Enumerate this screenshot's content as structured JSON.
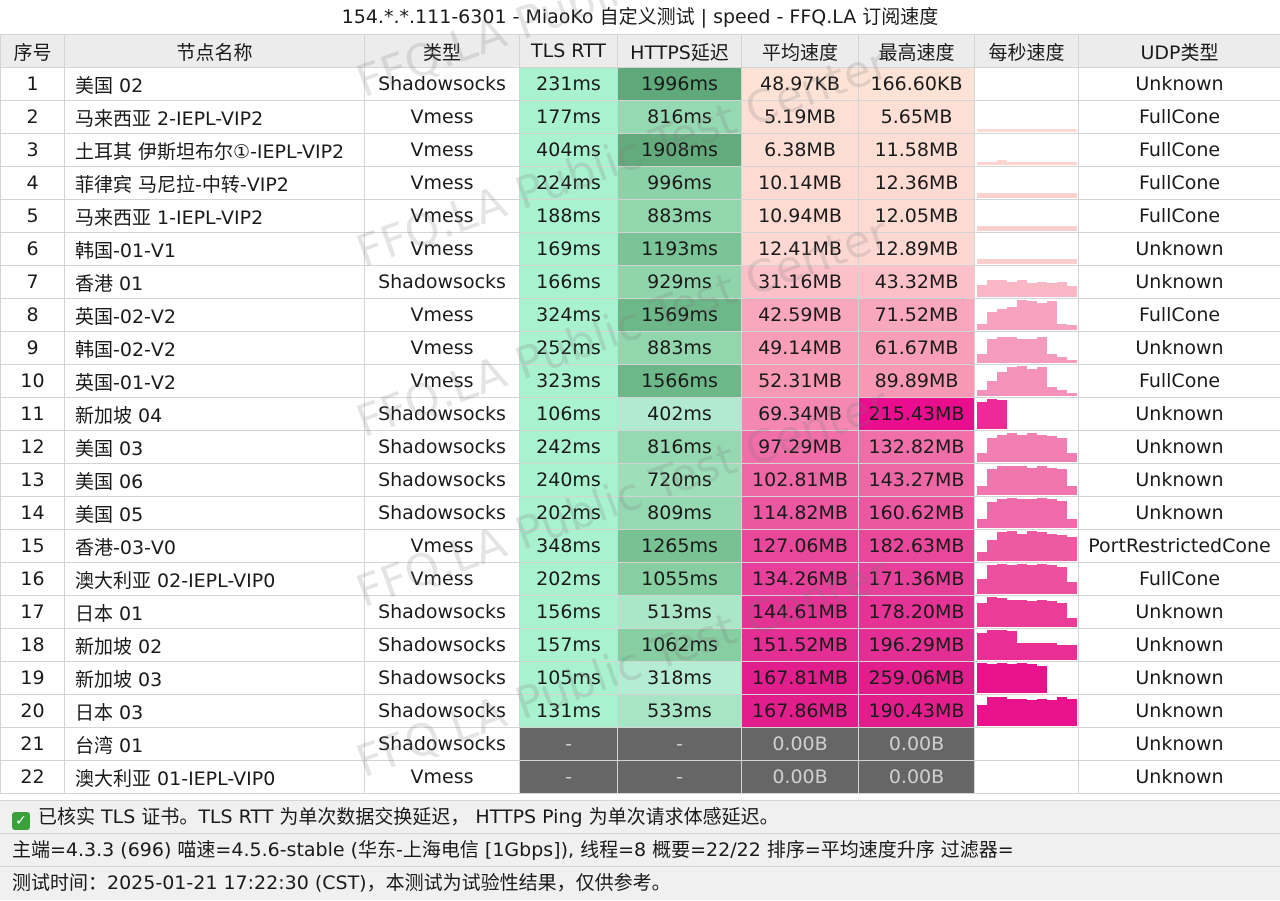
{
  "title": "154.*.*.111-6301 - MiaoKo 自定义测试 | speed - FFQ.LA 订阅速度",
  "columns": [
    "序号",
    "节点名称",
    "类型",
    "TLS RTT",
    "HTTPS延迟",
    "平均速度",
    "最高速度",
    "每秒速度",
    "UDP类型"
  ],
  "rows": [
    {
      "no": "1",
      "name": "美国 02",
      "type": "Shadowsocks",
      "tls": "231ms",
      "https": "1996ms",
      "avg": "48.97KB",
      "max": "166.60KB",
      "udp": "Unknown",
      "tls_color": "#a9f2cf",
      "https_color": "#5fa87a",
      "avg_color": "#fde3d6",
      "max_color": "#fde3d6",
      "profile": [],
      "profile_color": "#ffffff"
    },
    {
      "no": "2",
      "name": "马来西亚 2-IEPL-VIP2",
      "type": "Vmess",
      "tls": "177ms",
      "https": "816ms",
      "avg": "5.19MB",
      "max": "5.65MB",
      "udp": "FullCone",
      "tls_color": "#a9f2cf",
      "https_color": "#95d9b2",
      "avg_color": "#fddfd5",
      "max_color": "#fddfd5",
      "profile": [
        0.1,
        0.1,
        0.1,
        0.1,
        0.1,
        0.1,
        0.1,
        0.1,
        0.1,
        0.1
      ],
      "profile_color": "#fcd9d2"
    },
    {
      "no": "3",
      "name": "土耳其 伊斯坦布尔①-IEPL-VIP2",
      "type": "Vmess",
      "tls": "404ms",
      "https": "1908ms",
      "avg": "6.38MB",
      "max": "11.58MB",
      "udp": "FullCone",
      "tls_color": "#a9f2cf",
      "https_color": "#63ab7d",
      "avg_color": "#fdded5",
      "max_color": "#fdded5",
      "profile": [
        0.1,
        0.1,
        0.15,
        0.1,
        0.1,
        0.1,
        0.1,
        0.1,
        0.1,
        0.1
      ],
      "profile_color": "#fcd5d0"
    },
    {
      "no": "4",
      "name": "菲律宾 马尼拉-中转-VIP2",
      "type": "Vmess",
      "tls": "224ms",
      "https": "996ms",
      "avg": "10.14MB",
      "max": "12.36MB",
      "udp": "FullCone",
      "tls_color": "#a9f2cf",
      "https_color": "#8cd2a8",
      "avg_color": "#fddad2",
      "max_color": "#fddad2",
      "profile": [
        0.15,
        0.15,
        0.15,
        0.15,
        0.15,
        0.15,
        0.15,
        0.15,
        0.15,
        0.15
      ],
      "profile_color": "#fcd1cd"
    },
    {
      "no": "5",
      "name": "马来西亚 1-IEPL-VIP2",
      "type": "Vmess",
      "tls": "188ms",
      "https": "883ms",
      "avg": "10.94MB",
      "max": "12.05MB",
      "udp": "FullCone",
      "tls_color": "#a9f2cf",
      "https_color": "#92d6ae",
      "avg_color": "#fddad2",
      "max_color": "#fddad2",
      "profile": [
        0.15,
        0.15,
        0.15,
        0.15,
        0.15,
        0.15,
        0.15,
        0.15,
        0.15,
        0.15
      ],
      "profile_color": "#fcd1cd"
    },
    {
      "no": "6",
      "name": "韩国-01-V1",
      "type": "Vmess",
      "tls": "169ms",
      "https": "1193ms",
      "avg": "12.41MB",
      "max": "12.89MB",
      "udp": "Unknown",
      "tls_color": "#a9f2cf",
      "https_color": "#7bc497",
      "avg_color": "#fdd8d2",
      "max_color": "#fdd8d2",
      "profile": [
        0.15,
        0.15,
        0.15,
        0.15,
        0.15,
        0.15,
        0.15,
        0.15,
        0.15,
        0.15
      ],
      "profile_color": "#fccfcc"
    },
    {
      "no": "7",
      "name": "香港 01",
      "type": "Shadowsocks",
      "tls": "166ms",
      "https": "929ms",
      "avg": "31.16MB",
      "max": "43.32MB",
      "udp": "Unknown",
      "tls_color": "#a9f2cf",
      "https_color": "#8fd4ab",
      "avg_color": "#fbc0c8",
      "max_color": "#fbc0c8",
      "profile": [
        0.4,
        0.55,
        0.55,
        0.5,
        0.55,
        0.45,
        0.5,
        0.45,
        0.5,
        0.35
      ],
      "profile_color": "#f9b7c6"
    },
    {
      "no": "8",
      "name": "英国-02-V2",
      "type": "Vmess",
      "tls": "324ms",
      "https": "1569ms",
      "avg": "42.59MB",
      "max": "71.52MB",
      "udp": "FullCone",
      "tls_color": "#a9f2cf",
      "https_color": "#6db889",
      "avg_color": "#f9a7bd",
      "max_color": "#f9a7bd",
      "profile": [
        0.2,
        0.6,
        0.7,
        0.75,
        1.0,
        0.95,
        0.9,
        0.95,
        0.2,
        0.15
      ],
      "profile_color": "#f7a2bf"
    },
    {
      "no": "9",
      "name": "韩国-02-V2",
      "type": "Vmess",
      "tls": "252ms",
      "https": "883ms",
      "avg": "49.14MB",
      "max": "61.67MB",
      "udp": "Unknown",
      "tls_color": "#a9f2cf",
      "https_color": "#92d6ae",
      "avg_color": "#f89eb8",
      "max_color": "#f89eb8",
      "profile": [
        0.3,
        0.8,
        0.85,
        0.85,
        0.8,
        0.8,
        0.85,
        0.3,
        0.2,
        0.1
      ],
      "profile_color": "#f59bbd"
    },
    {
      "no": "10",
      "name": "英国-01-V2",
      "type": "Vmess",
      "tls": "323ms",
      "https": "1566ms",
      "avg": "52.31MB",
      "max": "89.89MB",
      "udp": "FullCone",
      "tls_color": "#a9f2cf",
      "https_color": "#6db889",
      "avg_color": "#f798b5",
      "max_color": "#f798b5",
      "profile": [
        0.2,
        0.5,
        0.8,
        0.95,
        1.0,
        0.9,
        0.95,
        0.3,
        0.2,
        0.1
      ],
      "profile_color": "#f592bb"
    },
    {
      "no": "11",
      "name": "新加坡 04",
      "type": "Shadowsocks",
      "tls": "106ms",
      "https": "402ms",
      "avg": "69.34MB",
      "max": "215.43MB",
      "udp": "Unknown",
      "tls_color": "#a9f2cf",
      "https_color": "#b1ead1",
      "avg_color": "#f488b2",
      "max_color": "#ea0d8e",
      "profile": [
        0.9,
        1.0,
        0.95,
        0,
        0,
        0,
        0,
        0,
        0,
        0
      ],
      "profile_color": "#ed2a98"
    },
    {
      "no": "12",
      "name": "美国 03",
      "type": "Shadowsocks",
      "tls": "242ms",
      "https": "816ms",
      "avg": "97.29MB",
      "max": "132.82MB",
      "udp": "Unknown",
      "tls_color": "#a9f2cf",
      "https_color": "#95d9b2",
      "avg_color": "#f06fa9",
      "max_color": "#f06fa9",
      "profile": [
        0.3,
        0.8,
        0.9,
        0.95,
        0.9,
        0.95,
        0.9,
        0.85,
        0.8,
        0.3
      ],
      "profile_color": "#f27fb2"
    },
    {
      "no": "13",
      "name": "美国 06",
      "type": "Shadowsocks",
      "tls": "240ms",
      "https": "720ms",
      "avg": "102.81MB",
      "max": "143.27MB",
      "udp": "Unknown",
      "tls_color": "#a9f2cf",
      "https_color": "#9ddfb9",
      "avg_color": "#ee67a5",
      "max_color": "#ee67a5",
      "profile": [
        0.3,
        0.85,
        0.95,
        0.95,
        0.95,
        0.9,
        0.95,
        0.9,
        0.85,
        0.3
      ],
      "profile_color": "#f176ae"
    },
    {
      "no": "14",
      "name": "美国 05",
      "type": "Shadowsocks",
      "tls": "202ms",
      "https": "809ms",
      "avg": "114.82MB",
      "max": "160.62MB",
      "udp": "Unknown",
      "tls_color": "#a9f2cf",
      "https_color": "#95d9b2",
      "avg_color": "#eb57a0",
      "max_color": "#eb57a0",
      "profile": [
        0.3,
        0.85,
        0.95,
        1.0,
        0.95,
        0.95,
        1.0,
        0.95,
        0.9,
        0.3
      ],
      "profile_color": "#ef6aa8"
    },
    {
      "no": "15",
      "name": "香港-03-V0",
      "type": "Vmess",
      "tls": "348ms",
      "https": "1265ms",
      "avg": "127.06MB",
      "max": "182.63MB",
      "udp": "PortRestrictedCone",
      "tls_color": "#a9f2cf",
      "https_color": "#77c193",
      "avg_color": "#e9489a",
      "max_color": "#e9489a",
      "profile": [
        0.3,
        0.7,
        0.95,
        1.0,
        0.9,
        1.0,
        0.95,
        0.9,
        0.85,
        0.8
      ],
      "profile_color": "#ed5aa2"
    },
    {
      "no": "16",
      "name": "澳大利亚 02-IEPL-VIP0",
      "type": "Vmess",
      "tls": "202ms",
      "https": "1055ms",
      "avg": "134.26MB",
      "max": "171.36MB",
      "udp": "FullCone",
      "tls_color": "#a9f2cf",
      "https_color": "#87cea3",
      "avg_color": "#e7409a",
      "max_color": "#e7409a",
      "profile": [
        0.5,
        0.95,
        1.0,
        0.95,
        1.0,
        0.95,
        1.0,
        0.95,
        0.9,
        0.4
      ],
      "profile_color": "#ec509e"
    },
    {
      "no": "17",
      "name": "日本 01",
      "type": "Shadowsocks",
      "tls": "156ms",
      "https": "513ms",
      "avg": "144.61MB",
      "max": "178.20MB",
      "udp": "Unknown",
      "tls_color": "#a9f2cf",
      "https_color": "#aae6c7",
      "avg_color": "#e43394",
      "max_color": "#e43394",
      "profile": [
        0.8,
        1.0,
        0.95,
        0.9,
        0.9,
        0.85,
        0.9,
        0.85,
        0.8,
        0.3
      ],
      "profile_color": "#ea3d98"
    },
    {
      "no": "18",
      "name": "新加坡 02",
      "type": "Shadowsocks",
      "tls": "157ms",
      "https": "1062ms",
      "avg": "151.52MB",
      "max": "196.29MB",
      "udp": "Unknown",
      "tls_color": "#a9f2cf",
      "https_color": "#87cea3",
      "avg_color": "#e32e93",
      "max_color": "#e32e93",
      "profile": [
        0.9,
        1.0,
        1.0,
        0.95,
        0.55,
        0.55,
        0.55,
        0.55,
        0.5,
        0.5
      ],
      "profile_color": "#ea2f94"
    },
    {
      "no": "19",
      "name": "新加坡 03",
      "type": "Shadowsocks",
      "tls": "105ms",
      "https": "318ms",
      "avg": "167.81MB",
      "max": "259.06MB",
      "udp": "Unknown",
      "tls_color": "#a9f2cf",
      "https_color": "#b5ecd4",
      "avg_color": "#e21e8d",
      "max_color": "#e21e8d",
      "profile": [
        1.0,
        0.95,
        1.0,
        0.95,
        1.0,
        0.95,
        0.9,
        0,
        0,
        0
      ],
      "profile_color": "#e8128c"
    },
    {
      "no": "20",
      "name": "日本 03",
      "type": "Shadowsocks",
      "tls": "131ms",
      "https": "533ms",
      "avg": "167.86MB",
      "max": "190.43MB",
      "udp": "Unknown",
      "tls_color": "#a9f2cf",
      "https_color": "#a8e5c5",
      "avg_color": "#e21e8d",
      "max_color": "#e21e8d",
      "profile": [
        0.7,
        0.95,
        0.95,
        0.9,
        0.9,
        0.85,
        0.9,
        0.85,
        0.95,
        0.9
      ],
      "profile_color": "#e8128c"
    },
    {
      "no": "21",
      "name": "台湾 01",
      "type": "Shadowsocks",
      "tls": "-",
      "https": "-",
      "avg": "0.00B",
      "max": "0.00B",
      "udp": "Unknown",
      "tls_color": "#666666",
      "https_color": "#666666",
      "avg_color": "#666666",
      "max_color": "#666666",
      "profile": [],
      "profile_color": "#ffffff"
    },
    {
      "no": "22",
      "name": "澳大利亚 01-IEPL-VIP0",
      "type": "Vmess",
      "tls": "-",
      "https": "-",
      "avg": "0.00B",
      "max": "0.00B",
      "udp": "Unknown",
      "tls_color": "#666666",
      "https_color": "#666666",
      "avg_color": "#666666",
      "max_color": "#666666",
      "profile": [],
      "profile_color": "#ffffff"
    }
  ],
  "notice": "已核实 TLS 证书。TLS RTT 为单次数据交换延迟， HTTPS Ping 为单次请求体感延迟。",
  "footer_line1": "主端=4.3.3 (696) 喵速=4.5.6-stable (华东-上海电信 [1Gbps]), 线程=8 概要=22/22 排序=平均速度升序 过滤器=",
  "footer_line2": "测试时间：2025-01-21 17:22:30 (CST)，本测试为试验性结果，仅供参考。",
  "watermark": "FFQ.LA Public Test Center",
  "icons": {
    "notice": "check-icon"
  }
}
